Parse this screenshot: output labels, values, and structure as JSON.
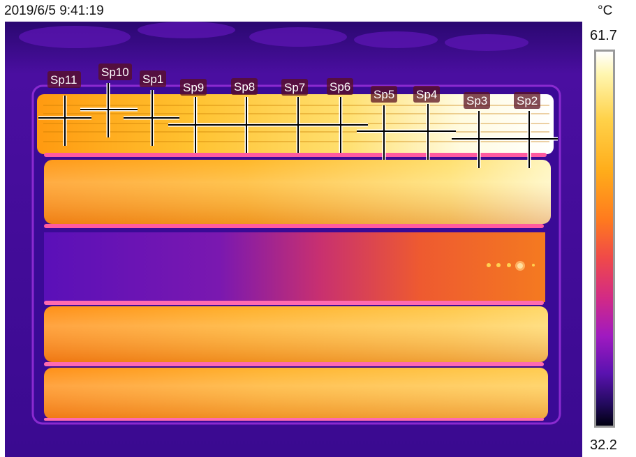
{
  "header": {
    "timestamp": "2019/6/5 9:41:19",
    "unit": "°C"
  },
  "scale": {
    "max": "61.7",
    "min": "32.2",
    "palette": "iron"
  },
  "spots": [
    "Sp11",
    "Sp10",
    "Sp1",
    "Sp9",
    "Sp8",
    "Sp7",
    "Sp6",
    "Sp5",
    "Sp4",
    "Sp3",
    "Sp2"
  ],
  "colors": {
    "background_cold": "#3c0a88",
    "hot": "#ffffff",
    "warm": "#ffb21a",
    "edge": "#e0409a"
  }
}
